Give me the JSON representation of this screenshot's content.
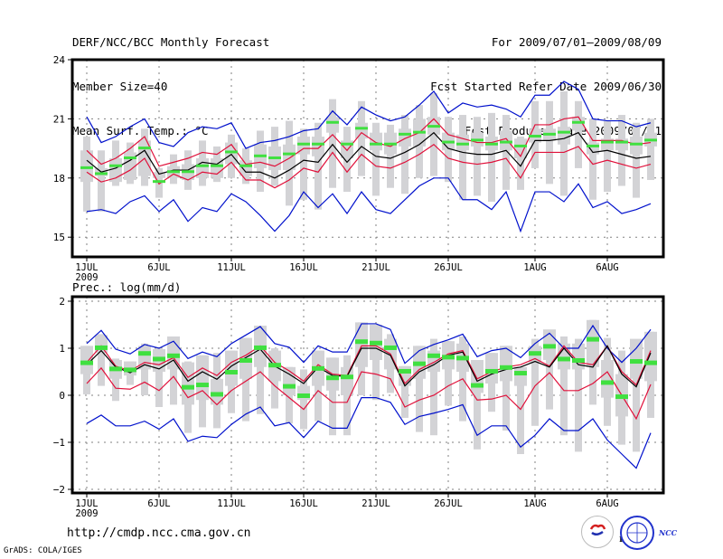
{
  "header": {
    "left": [
      "DERF/NCC/BCC Monthly Forecast",
      "Member Size=40",
      "Mean Surf. Temp.: °C"
    ],
    "right": [
      "For 2009/07/01—2009/08/09",
      "Fcst Started Refer Date 2009/06/30",
      "Fcst Produced Date 2009/07/01"
    ]
  },
  "footer": {
    "url": "http://cmdp.ncc.cma.gov.cn",
    "credit": "GrADS: COLA/IGES",
    "logos": [
      "BCC",
      "NCC"
    ]
  },
  "colors": {
    "mean": "#000000",
    "spread": "#e0103a",
    "extreme": "#0010cc",
    "median": "#40e040",
    "box": "#d3d3d6",
    "grid": "#808080"
  },
  "chart_data": [
    {
      "type": "line",
      "title": "Mean Surf. Temp.: °C",
      "xlabel": "",
      "ylabel": "",
      "x_start": "2009-07-01",
      "n_days": 40,
      "x_ticks": [
        {
          "day": 0,
          "label": "1JUL",
          "sub": "2009"
        },
        {
          "day": 5,
          "label": "6JUL"
        },
        {
          "day": 10,
          "label": "11JUL"
        },
        {
          "day": 15,
          "label": "16JUL"
        },
        {
          "day": 20,
          "label": "21JUL"
        },
        {
          "day": 25,
          "label": "26JUL"
        },
        {
          "day": 31,
          "label": "1AUG"
        },
        {
          "day": 36,
          "label": "6AUG"
        }
      ],
      "y_ticks": [
        15,
        18,
        21,
        24
      ],
      "ylim": [
        14,
        24
      ],
      "grid": true,
      "series": [
        {
          "name": "ensemble-mean",
          "role": "mean",
          "values": [
            18.9,
            18.3,
            18.5,
            18.9,
            19.4,
            18.2,
            18.4,
            18.4,
            18.8,
            18.7,
            19.2,
            18.3,
            18.3,
            18.0,
            18.4,
            18.9,
            18.8,
            19.7,
            18.8,
            19.6,
            19.1,
            19.0,
            19.3,
            19.7,
            20.3,
            19.5,
            19.3,
            19.2,
            19.2,
            19.4,
            18.6,
            19.9,
            19.9,
            20.0,
            20.3,
            19.3,
            19.4,
            19.2,
            19.0,
            19.1
          ]
        },
        {
          "name": "upper-spread",
          "role": "spread",
          "values": [
            19.4,
            18.7,
            19.0,
            19.5,
            20.1,
            18.6,
            18.8,
            19.0,
            19.3,
            19.2,
            19.7,
            18.7,
            18.8,
            18.6,
            19.0,
            19.5,
            19.5,
            20.2,
            19.4,
            20.3,
            19.8,
            19.6,
            20.0,
            20.3,
            21.0,
            20.2,
            20.0,
            19.8,
            19.8,
            20.0,
            19.1,
            20.7,
            20.7,
            21.0,
            21.1,
            19.9,
            19.9,
            19.9,
            19.7,
            19.8
          ]
        },
        {
          "name": "lower-spread",
          "role": "spread",
          "values": [
            18.3,
            17.8,
            18.0,
            18.4,
            19.0,
            17.7,
            18.2,
            17.9,
            18.3,
            18.2,
            18.8,
            17.9,
            17.9,
            17.5,
            17.9,
            18.5,
            18.3,
            19.3,
            18.3,
            19.2,
            18.6,
            18.5,
            18.8,
            19.2,
            19.7,
            19.0,
            18.8,
            18.7,
            18.8,
            19.0,
            18.0,
            19.3,
            19.3,
            19.3,
            19.6,
            18.7,
            18.9,
            18.7,
            18.5,
            18.7
          ]
        },
        {
          "name": "maximum",
          "role": "extreme",
          "values": [
            21.1,
            19.8,
            20.1,
            20.6,
            21.0,
            19.8,
            19.6,
            20.3,
            20.6,
            20.5,
            20.8,
            19.5,
            19.8,
            19.9,
            20.1,
            20.4,
            20.5,
            21.4,
            20.7,
            21.6,
            21.2,
            20.9,
            21.1,
            21.7,
            22.4,
            21.3,
            21.8,
            21.6,
            21.7,
            21.5,
            21.1,
            22.2,
            22.2,
            22.9,
            22.5,
            21.0,
            20.9,
            20.9,
            20.6,
            20.8
          ]
        },
        {
          "name": "minimum",
          "role": "extreme",
          "values": [
            16.3,
            16.4,
            16.2,
            16.8,
            17.1,
            16.3,
            16.9,
            15.8,
            16.5,
            16.3,
            17.2,
            16.8,
            16.1,
            15.3,
            16.1,
            17.3,
            16.5,
            17.2,
            16.2,
            17.3,
            16.4,
            16.2,
            16.9,
            17.6,
            18.0,
            18.0,
            16.9,
            16.9,
            16.4,
            17.3,
            15.3,
            17.3,
            17.3,
            16.8,
            17.7,
            16.5,
            16.8,
            16.2,
            16.4,
            16.7
          ]
        },
        {
          "name": "member-median",
          "role": "median",
          "values": [
            18.5,
            18.2,
            18.6,
            19.0,
            19.5,
            17.8,
            18.3,
            18.3,
            18.6,
            18.6,
            19.3,
            18.6,
            19.1,
            19.0,
            19.2,
            19.7,
            19.7,
            20.8,
            19.7,
            20.5,
            19.7,
            19.7,
            20.2,
            20.3,
            20.6,
            19.8,
            19.7,
            19.9,
            19.7,
            19.8,
            19.6,
            20.1,
            20.2,
            20.3,
            20.8,
            19.6,
            19.8,
            19.8,
            19.7,
            19.9
          ]
        },
        {
          "name": "box-q1",
          "role": "box",
          "values": [
            17.8,
            18.1,
            17.8,
            17.9,
            18.1,
            18.0,
            18.0,
            17.9,
            18.0,
            18.0,
            18.7,
            18.1,
            18.5,
            18.4,
            18.4,
            19.2,
            19.1,
            20.3,
            19.0,
            20.0,
            19.4,
            19.2,
            19.6,
            19.6,
            20.2,
            19.4,
            19.4,
            19.6,
            19.4,
            19.4,
            19.0,
            19.8,
            19.9,
            19.7,
            20.4,
            19.2,
            19.4,
            19.4,
            19.2,
            19.6
          ]
        },
        {
          "name": "box-q3",
          "role": "box",
          "values": [
            19.4,
            18.5,
            19.0,
            19.3,
            19.9,
            18.3,
            18.6,
            18.7,
            19.0,
            19.0,
            19.8,
            18.9,
            19.7,
            19.6,
            19.7,
            20.1,
            20.1,
            21.1,
            19.9,
            20.8,
            20.3,
            20.3,
            20.5,
            21.0,
            21.1,
            20.3,
            20.2,
            20.3,
            20.1,
            20.4,
            20.0,
            20.5,
            20.5,
            20.6,
            21.1,
            19.8,
            20.0,
            20.0,
            20.1,
            20.3
          ]
        },
        {
          "name": "whisker-low",
          "role": "whisker",
          "values": [
            16.3,
            16.3,
            17.6,
            17.7,
            17.6,
            17.0,
            17.7,
            17.4,
            17.6,
            17.8,
            18.0,
            17.7,
            17.3,
            17.6,
            16.6,
            16.9,
            16.4,
            17.5,
            17.3,
            18.1,
            17.1,
            17.5,
            17.2,
            18.0,
            18.1,
            17.8,
            16.9,
            17.1,
            16.8,
            17.4,
            17.4,
            18.5,
            17.7,
            17.1,
            18.5,
            16.9,
            17.3,
            17.6,
            17.0,
            17.9
          ]
        },
        {
          "name": "whisker-high",
          "role": "whisker",
          "values": [
            20.1,
            19.4,
            19.9,
            19.8,
            20.5,
            18.5,
            19.2,
            19.4,
            19.9,
            19.6,
            20.2,
            19.5,
            20.4,
            20.6,
            20.9,
            20.5,
            20.8,
            22.0,
            20.6,
            21.9,
            20.8,
            20.7,
            21.2,
            21.7,
            22.3,
            21.1,
            21.2,
            21.1,
            21.3,
            21.2,
            20.1,
            21.9,
            21.9,
            22.4,
            21.9,
            21.0,
            20.9,
            21.2,
            20.8,
            21.0
          ]
        }
      ]
    },
    {
      "type": "line",
      "title": "Prec.: log(mm/d)",
      "xlabel": "",
      "ylabel": "",
      "x_start": "2009-07-01",
      "n_days": 40,
      "x_ticks": [
        {
          "day": 0,
          "label": "1JUL",
          "sub": "2009"
        },
        {
          "day": 5,
          "label": "6JUL"
        },
        {
          "day": 10,
          "label": "11JUL"
        },
        {
          "day": 15,
          "label": "16JUL"
        },
        {
          "day": 20,
          "label": "21JUL"
        },
        {
          "day": 25,
          "label": "26JUL"
        },
        {
          "day": 31,
          "label": "1AUG"
        },
        {
          "day": 36,
          "label": "6AUG"
        }
      ],
      "y_ticks": [
        -2,
        -1,
        0,
        1,
        2
      ],
      "ylim": [
        -2.1,
        2.05
      ],
      "grid": true,
      "series": [
        {
          "name": "ensemble-mean",
          "role": "mean",
          "values": [
            0.65,
            0.95,
            0.6,
            0.48,
            0.65,
            0.56,
            0.75,
            0.3,
            0.5,
            0.34,
            0.62,
            0.8,
            0.98,
            0.62,
            0.45,
            0.25,
            0.6,
            0.42,
            0.4,
            1.0,
            1.0,
            0.85,
            0.2,
            0.5,
            0.65,
            0.85,
            0.92,
            0.3,
            0.45,
            0.55,
            0.6,
            0.72,
            0.6,
            1.0,
            0.65,
            0.6,
            1.05,
            0.45,
            0.18,
            0.9
          ]
        },
        {
          "name": "upper-spread",
          "role": "spread",
          "values": [
            0.7,
            1.05,
            0.62,
            0.52,
            0.7,
            0.65,
            0.8,
            0.38,
            0.58,
            0.42,
            0.7,
            0.85,
            1.05,
            0.7,
            0.52,
            0.3,
            0.65,
            0.45,
            0.42,
            1.05,
            1.05,
            0.88,
            0.25,
            0.55,
            0.7,
            0.88,
            0.95,
            0.35,
            0.5,
            0.6,
            0.65,
            0.78,
            0.62,
            1.05,
            0.7,
            0.65,
            1.05,
            0.5,
            0.22,
            0.95
          ]
        },
        {
          "name": "lower-spread",
          "role": "spread",
          "values": [
            0.25,
            0.58,
            0.15,
            0.13,
            0.28,
            0.1,
            0.4,
            -0.05,
            0.1,
            -0.2,
            0.1,
            0.3,
            0.5,
            0.2,
            -0.05,
            -0.3,
            0.1,
            -0.15,
            -0.15,
            0.5,
            0.45,
            0.35,
            -0.25,
            -0.1,
            0.0,
            0.2,
            0.35,
            -0.1,
            -0.08,
            0.0,
            -0.3,
            0.2,
            0.48,
            0.1,
            0.1,
            0.25,
            0.5,
            0.0,
            -0.5,
            0.23
          ]
        },
        {
          "name": "maximum",
          "role": "extreme",
          "values": [
            1.1,
            1.38,
            0.98,
            0.88,
            1.08,
            1.0,
            1.15,
            0.78,
            0.92,
            0.82,
            1.1,
            1.28,
            1.46,
            1.1,
            1.02,
            0.7,
            1.05,
            0.92,
            0.92,
            1.52,
            1.52,
            1.4,
            0.68,
            0.95,
            1.08,
            1.18,
            1.3,
            0.82,
            0.95,
            1.0,
            0.8,
            1.1,
            1.32,
            1.0,
            1.0,
            1.48,
            1.0,
            0.7,
            1.0,
            1.4
          ]
        },
        {
          "name": "minimum",
          "role": "extreme",
          "values": [
            -0.6,
            -0.42,
            -0.65,
            -0.65,
            -0.55,
            -0.72,
            -0.5,
            -0.98,
            -0.87,
            -0.9,
            -0.62,
            -0.4,
            -0.25,
            -0.65,
            -0.58,
            -0.9,
            -0.55,
            -0.7,
            -0.7,
            -0.05,
            -0.05,
            -0.15,
            -0.62,
            -0.45,
            -0.38,
            -0.3,
            -0.2,
            -0.85,
            -0.65,
            -0.65,
            -1.1,
            -0.85,
            -0.5,
            -0.75,
            -0.75,
            -0.5,
            -0.95,
            -1.25,
            -1.55,
            -0.8
          ]
        },
        {
          "name": "member-median",
          "role": "median",
          "values": [
            0.7,
            1.02,
            0.57,
            0.55,
            0.9,
            0.78,
            0.85,
            0.18,
            0.23,
            0.03,
            0.5,
            0.75,
            1.02,
            0.65,
            0.2,
            0.0,
            0.58,
            0.38,
            0.4,
            1.15,
            1.12,
            1.02,
            0.52,
            0.68,
            0.85,
            0.82,
            0.8,
            0.22,
            0.52,
            0.6,
            0.48,
            0.9,
            1.05,
            0.78,
            0.75,
            1.2,
            0.28,
            -0.02,
            0.73,
            0.7
          ]
        },
        {
          "name": "box-q1",
          "role": "box",
          "values": [
            0.45,
            0.9,
            0.35,
            0.42,
            0.55,
            0.5,
            0.55,
            -0.2,
            -0.1,
            -0.2,
            0.2,
            0.35,
            0.6,
            0.3,
            0.0,
            -0.1,
            0.2,
            0.1,
            0.0,
            0.6,
            0.75,
            0.55,
            0.2,
            0.35,
            0.5,
            0.55,
            0.5,
            0.05,
            0.25,
            0.3,
            0.2,
            0.7,
            0.75,
            0.55,
            0.55,
            0.6,
            -0.05,
            -0.45,
            0.35,
            0.3
          ]
        },
        {
          "name": "box-q3",
          "role": "box",
          "values": [
            1.05,
            1.28,
            0.75,
            0.72,
            1.05,
            0.98,
            1.25,
            0.7,
            0.85,
            0.35,
            0.95,
            1.22,
            1.48,
            0.95,
            0.6,
            0.2,
            0.95,
            0.8,
            0.6,
            1.55,
            1.5,
            1.2,
            0.62,
            1.05,
            0.95,
            1.15,
            1.1,
            0.75,
            0.9,
            1.05,
            0.6,
            1.05,
            1.4,
            1.1,
            1.1,
            1.6,
            0.75,
            0.45,
            1.2,
            1.35
          ]
        },
        {
          "name": "whisker-low",
          "role": "whisker",
          "values": [
            0.02,
            0.2,
            -0.12,
            0.22,
            0.0,
            -0.25,
            -0.2,
            -0.8,
            -0.68,
            -0.7,
            -0.38,
            -0.55,
            -0.4,
            -0.28,
            -0.6,
            -0.72,
            -0.55,
            -0.85,
            -0.85,
            0.0,
            -0.1,
            0.05,
            -0.48,
            -0.78,
            -0.85,
            -0.22,
            -0.55,
            -1.15,
            -0.35,
            -0.75,
            -1.25,
            -0.65,
            -0.3,
            -0.85,
            -1.2,
            -0.2,
            -0.65,
            -1.05,
            -1.2,
            -0.48
          ]
        },
        {
          "name": "whisker-high",
          "role": "whisker",
          "values": [
            1.05,
            1.3,
            0.78,
            0.72,
            1.1,
            1.0,
            1.25,
            0.72,
            0.85,
            0.9,
            0.95,
            1.22,
            1.48,
            1.0,
            0.6,
            0.55,
            0.95,
            0.8,
            0.85,
            1.55,
            1.5,
            1.3,
            0.62,
            1.05,
            1.2,
            1.15,
            1.25,
            0.75,
            0.9,
            1.05,
            0.6,
            1.2,
            1.35,
            1.25,
            1.2,
            1.6,
            1.22,
            0.95,
            1.05,
            1.35
          ]
        }
      ]
    }
  ]
}
